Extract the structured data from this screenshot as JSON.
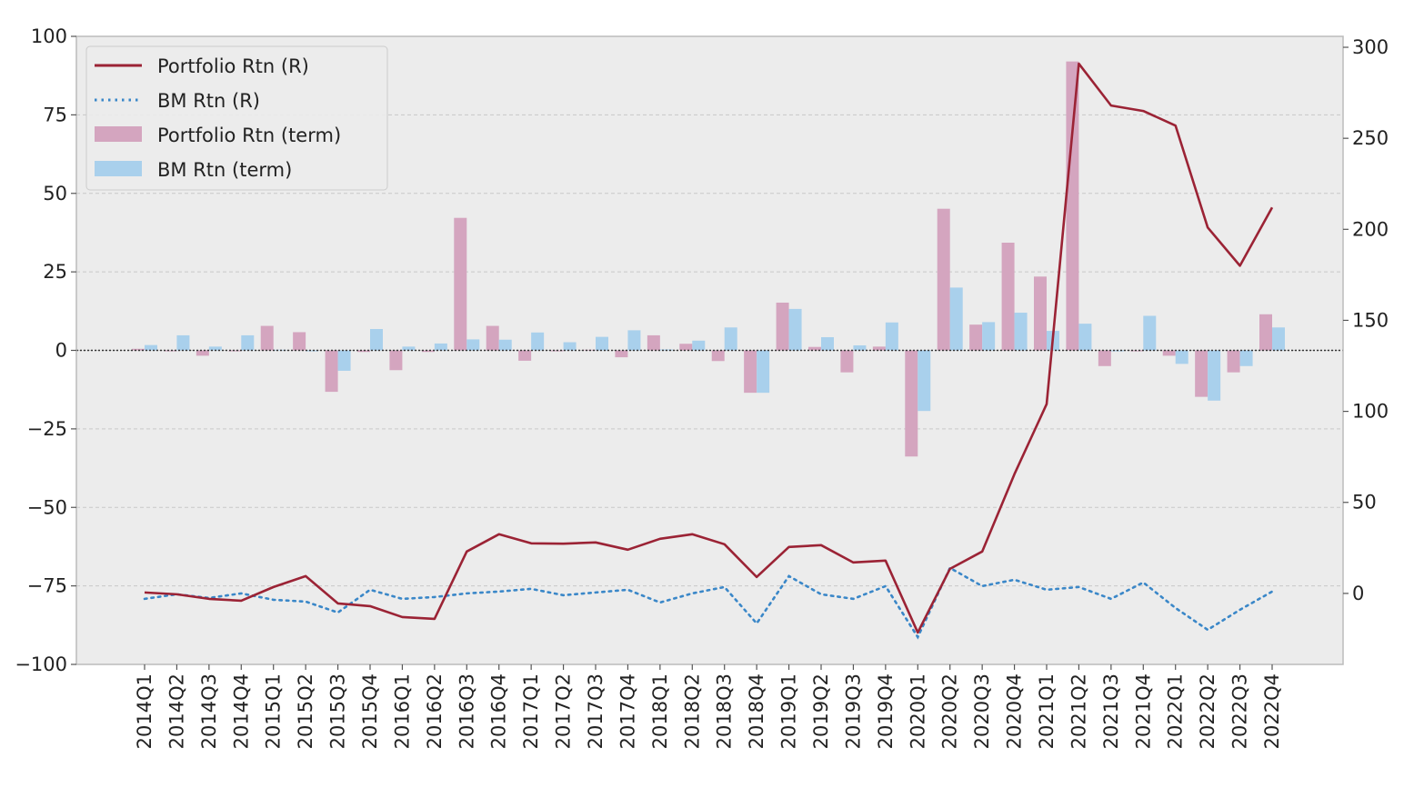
{
  "chart_data": {
    "type": "bar",
    "title": "",
    "xlabel": "",
    "ylabel": "",
    "categories": [
      "2014Q1",
      "2014Q2",
      "2014Q3",
      "2014Q4",
      "2015Q1",
      "2015Q2",
      "2015Q3",
      "2015Q4",
      "2016Q1",
      "2016Q2",
      "2016Q3",
      "2016Q4",
      "2017Q1",
      "2017Q2",
      "2017Q3",
      "2017Q4",
      "2018Q1",
      "2018Q2",
      "2018Q3",
      "2018Q4",
      "2019Q1",
      "2019Q2",
      "2019Q3",
      "2019Q4",
      "2020Q1",
      "2020Q2",
      "2020Q3",
      "2020Q4",
      "2021Q1",
      "2021Q2",
      "2021Q3",
      "2021Q4",
      "2022Q1",
      "2022Q2",
      "2022Q3",
      "2022Q4"
    ],
    "ylim": [
      -100,
      100
    ],
    "y2lim": [
      -39,
      306
    ],
    "yticks": [
      -100,
      -75,
      -50,
      -25,
      0,
      25,
      50,
      75,
      100
    ],
    "y2ticks": [
      0,
      50,
      100,
      150,
      200,
      250,
      300
    ],
    "grid": true,
    "legend_position": "top-left",
    "colors": {
      "portfolio_line": "#9b2335",
      "bm_line": "#3a87c8",
      "portfolio_bar": "#d4a5bf",
      "bm_bar": "#a9d0ec",
      "plot_bg": "#ececec",
      "grid": "#c8c8c8"
    },
    "series": [
      {
        "name": "Portfolio Rtn (R)",
        "kind": "line",
        "axis": "right",
        "style": "solid",
        "values": [
          0.5,
          -0.5,
          -3,
          -4,
          3.5,
          9.5,
          -5.5,
          -7,
          -13,
          -14,
          23,
          32.5,
          27.5,
          27.3,
          28,
          24,
          30,
          32.5,
          27,
          9,
          25.5,
          26.5,
          17,
          18,
          -21.5,
          13.5,
          23,
          65.5,
          104,
          291,
          268,
          265,
          257,
          201,
          180,
          212
        ]
      },
      {
        "name": "BM Rtn (R)",
        "kind": "line",
        "axis": "right",
        "style": "dotted",
        "values": [
          -3,
          -0.5,
          -2.5,
          0,
          -3.5,
          -4.5,
          -10.5,
          2,
          -3,
          -2,
          0,
          1,
          2.5,
          -1,
          0.5,
          2,
          -5,
          0,
          3.5,
          -16.5,
          9.5,
          -0.5,
          -3,
          4,
          -24,
          14,
          4,
          7.5,
          2,
          3.5,
          -3,
          6,
          -8,
          -20,
          -9,
          1
        ]
      },
      {
        "name": "Portfolio Rtn (term)",
        "kind": "bar",
        "axis": "left",
        "values": [
          0.5,
          -0.3,
          -1.7,
          -0.3,
          7.8,
          5.8,
          -13.2,
          -0.5,
          -6.3,
          -0.5,
          42.2,
          7.8,
          -3.3,
          -0.3,
          0.2,
          -2.2,
          4.8,
          2.1,
          -3.4,
          -13.5,
          15.2,
          1.1,
          -7,
          1.2,
          -33.8,
          45.1,
          8.2,
          34.3,
          23.5,
          92,
          -5,
          -0.3,
          -1.7,
          -14.8,
          -7,
          11.5
        ]
      },
      {
        "name": "BM Rtn (term)",
        "kind": "bar",
        "axis": "left",
        "values": [
          1.7,
          4.8,
          1.2,
          4.8,
          0.2,
          -0.3,
          -6.5,
          6.8,
          1.2,
          2.2,
          3.5,
          3.4,
          5.7,
          2.6,
          4.3,
          6.4,
          0.3,
          3.1,
          7.3,
          -13.5,
          13.2,
          4.2,
          1.6,
          8.9,
          -19.3,
          20,
          9,
          12,
          6.2,
          8.5,
          -0.3,
          11,
          -4.3,
          -16,
          -5,
          7.3
        ]
      }
    ]
  }
}
